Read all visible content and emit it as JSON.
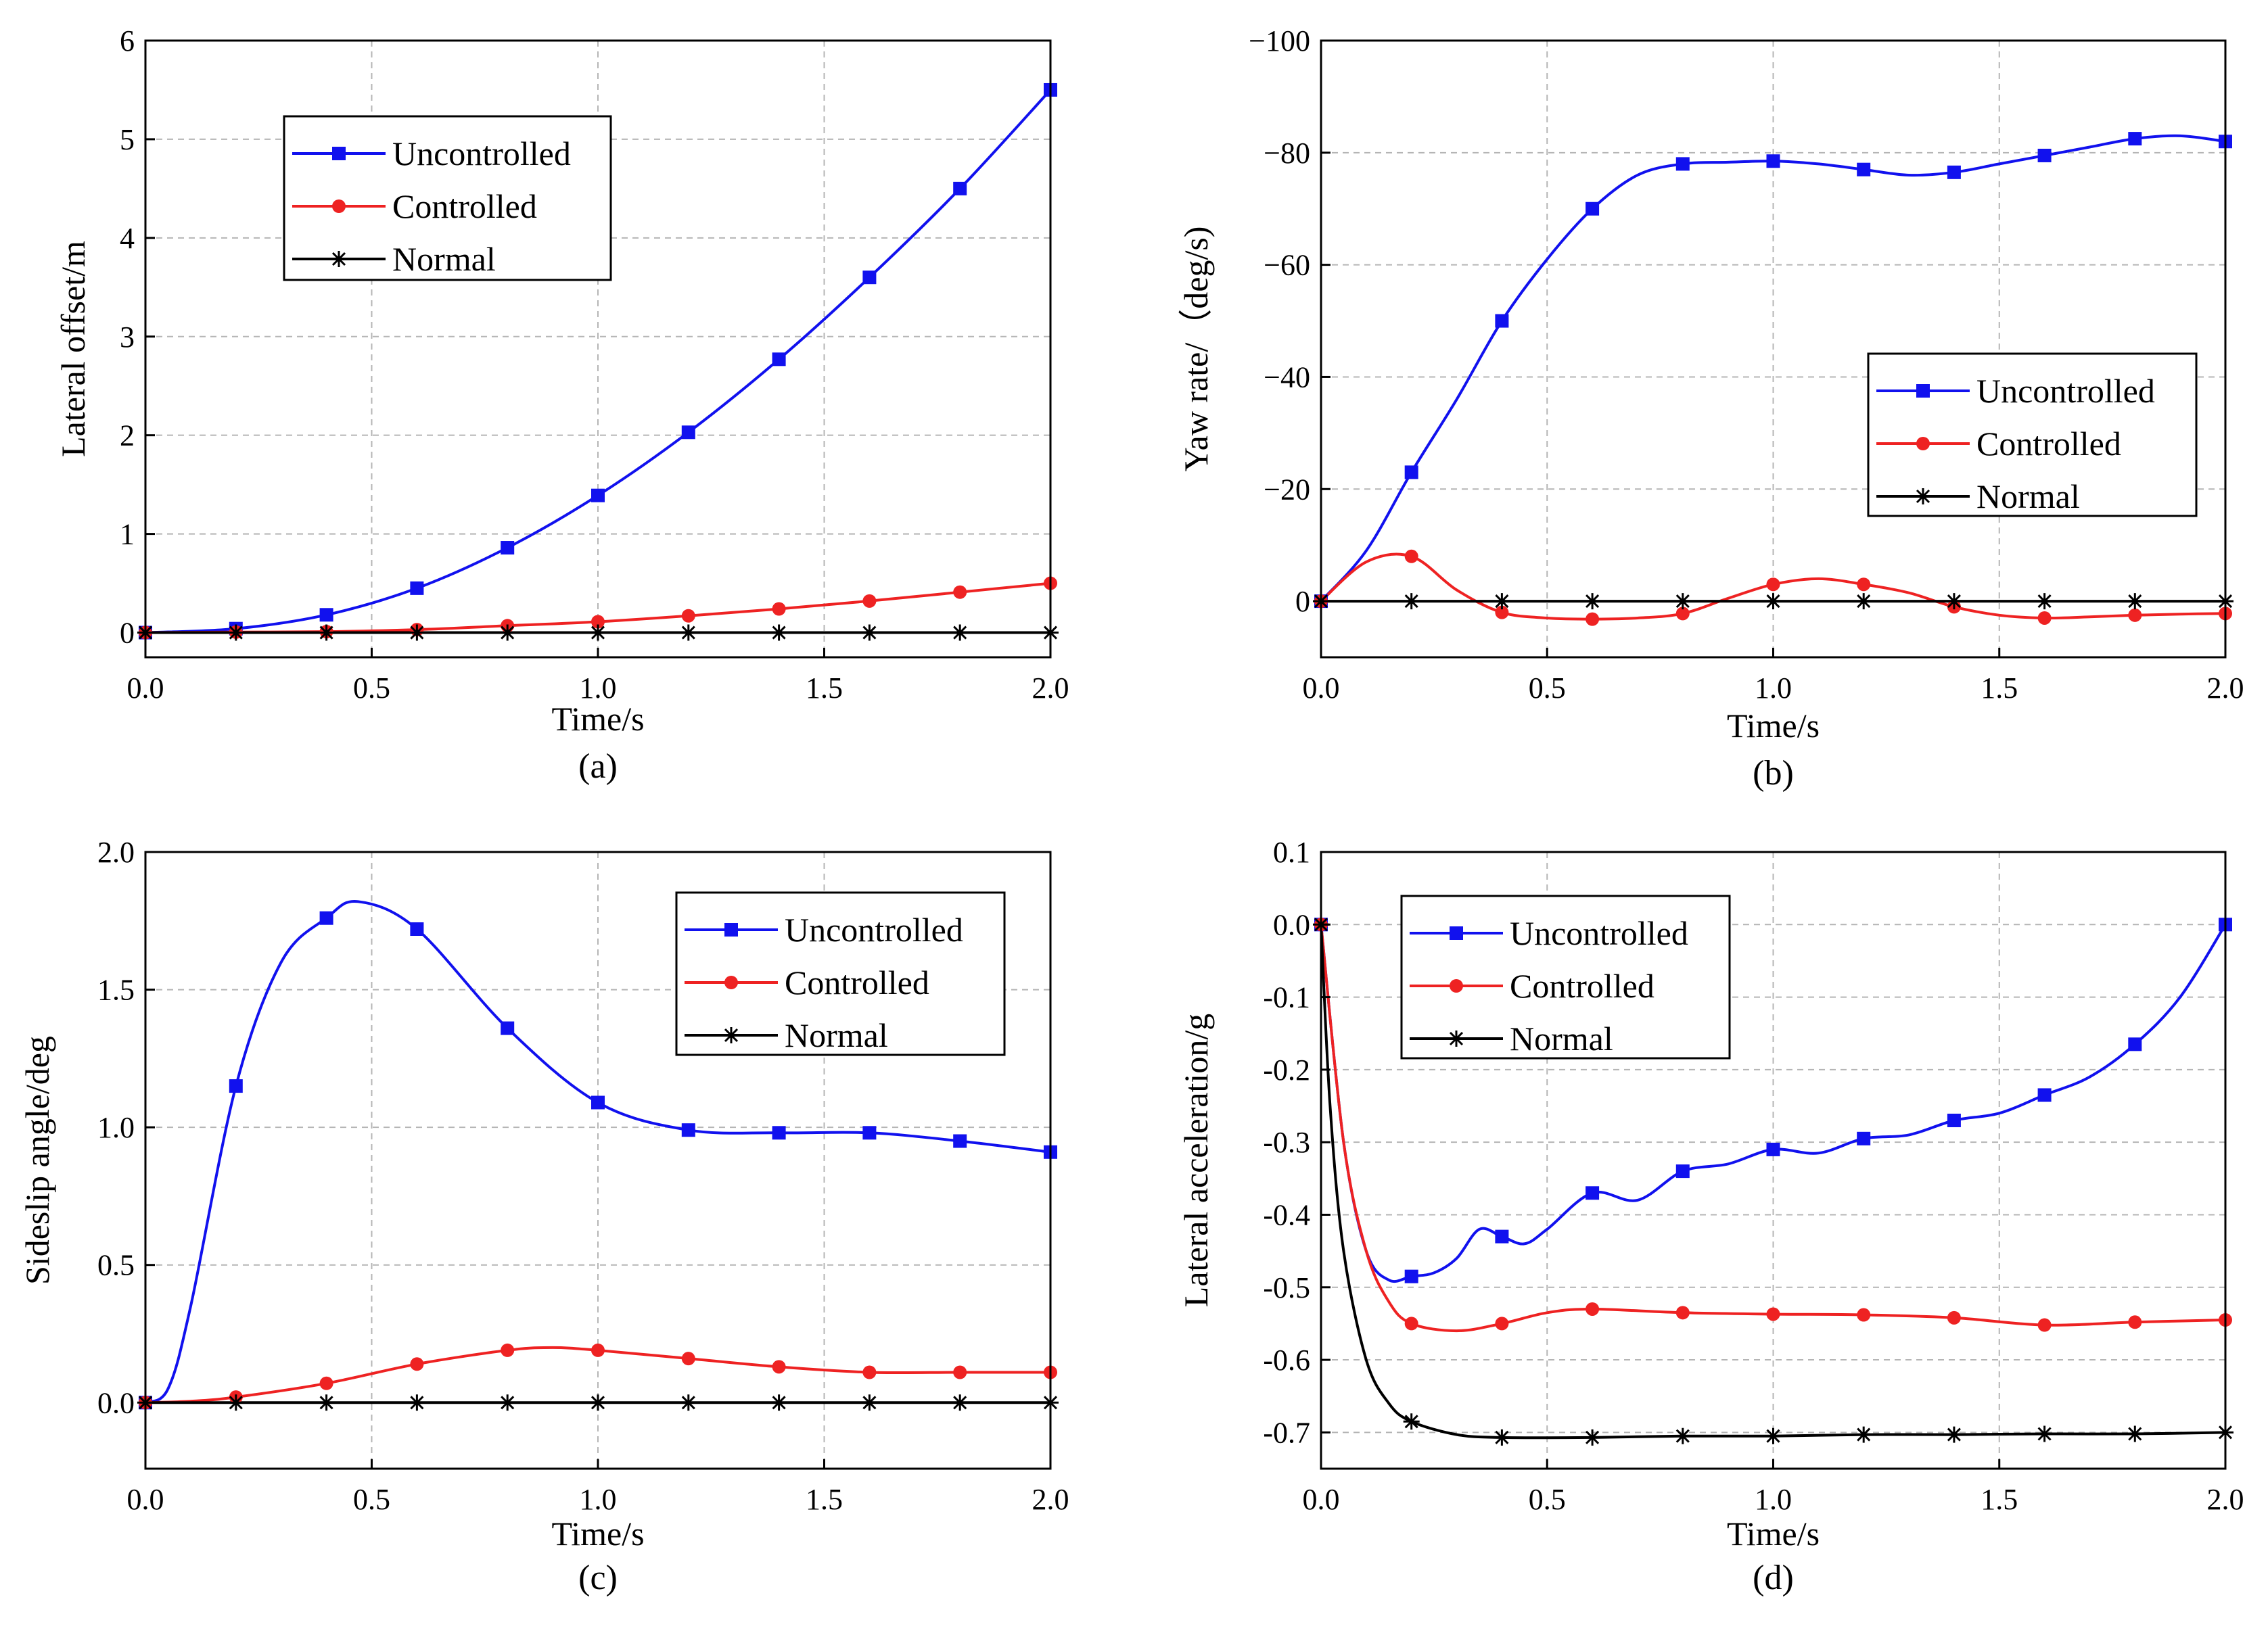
{
  "chart_data": [
    {
      "panel": "(a)",
      "type": "line",
      "xlabel": "Time/s",
      "ylabel": "Lateral offset/m",
      "xlim": [
        0,
        2
      ],
      "ylim": [
        -0.25,
        6
      ],
      "xticks": [
        0,
        0.5,
        1,
        1.5,
        2
      ],
      "xtick_labels": [
        "0.0",
        "0.5",
        "1.0",
        "1.5",
        "2.0"
      ],
      "yticks": [
        0,
        1,
        2,
        3,
        4,
        5,
        6
      ],
      "ytick_labels": [
        "0",
        "1",
        "2",
        "3",
        "4",
        "5",
        "6"
      ],
      "grid": true,
      "legend_position": "top-center",
      "series": [
        {
          "name": "Uncontrolled",
          "color": "#1111ee",
          "marker": "square",
          "x": [
            0,
            0.2,
            0.4,
            0.6,
            0.8,
            1.0,
            1.2,
            1.4,
            1.6,
            1.8,
            2.0
          ],
          "y": [
            0,
            0.04,
            0.18,
            0.45,
            0.86,
            1.39,
            2.03,
            2.77,
            3.6,
            4.5,
            5.5
          ]
        },
        {
          "name": "Controlled",
          "color": "#ee2222",
          "marker": "circle",
          "x": [
            0,
            0.2,
            0.4,
            0.6,
            0.8,
            1.0,
            1.2,
            1.4,
            1.6,
            1.8,
            2.0
          ],
          "y": [
            0,
            0.005,
            0.01,
            0.03,
            0.07,
            0.11,
            0.17,
            0.24,
            0.32,
            0.41,
            0.5
          ]
        },
        {
          "name": "Normal",
          "color": "#000000",
          "marker": "star",
          "x": [
            0,
            0.2,
            0.4,
            0.6,
            0.8,
            1.0,
            1.2,
            1.4,
            1.6,
            1.8,
            2.0
          ],
          "y": [
            0,
            0,
            0,
            0,
            0,
            0,
            0,
            0,
            0,
            0,
            0
          ]
        }
      ]
    },
    {
      "panel": "(b)",
      "type": "line",
      "xlabel": "Time/s",
      "ylabel": "Yaw rate/（deg/s)",
      "xlim": [
        0,
        2
      ],
      "ylim": [
        10,
        -100
      ],
      "y_inverted": true,
      "xticks": [
        0,
        0.5,
        1,
        1.5,
        2
      ],
      "xtick_labels": [
        "0.0",
        "0.5",
        "1.0",
        "1.5",
        "2.0"
      ],
      "yticks": [
        0,
        -20,
        -40,
        -60,
        -80,
        -100
      ],
      "ytick_labels": [
        "0",
        "−20",
        "−40",
        "−60",
        "−80",
        "−100"
      ],
      "grid": true,
      "legend_position": "middle-right",
      "series": [
        {
          "name": "Uncontrolled",
          "color": "#1111ee",
          "marker": "square",
          "x": [
            0,
            0.1,
            0.2,
            0.3,
            0.4,
            0.5,
            0.6,
            0.7,
            0.8,
            0.9,
            1.0,
            1.1,
            1.2,
            1.3,
            1.4,
            1.5,
            1.6,
            1.7,
            1.8,
            1.9,
            2.0
          ],
          "y": [
            0,
            -9,
            -23,
            -36,
            -50,
            -61,
            -70,
            -76,
            -78,
            -78.3,
            -78.5,
            -78,
            -77,
            -76,
            -76.5,
            -78,
            -79.5,
            -81,
            -82.5,
            -83,
            -82
          ],
          "marked_x": [
            0,
            0.2,
            0.4,
            0.6,
            0.8,
            1.0,
            1.2,
            1.4,
            1.6,
            1.8,
            2.0
          ]
        },
        {
          "name": "Controlled",
          "color": "#ee2222",
          "marker": "circle",
          "x": [
            0,
            0.1,
            0.2,
            0.3,
            0.4,
            0.5,
            0.6,
            0.7,
            0.8,
            0.9,
            1.0,
            1.1,
            1.2,
            1.3,
            1.4,
            1.5,
            1.6,
            1.7,
            1.8,
            1.9,
            2.0
          ],
          "y": [
            0,
            -7,
            -8,
            -2,
            2,
            3,
            3.2,
            3,
            2.2,
            -0.5,
            -3,
            -4,
            -3,
            -1.5,
            1,
            2.5,
            3,
            2.8,
            2.5,
            2.3,
            2.2
          ],
          "marked_x": [
            0,
            0.2,
            0.4,
            0.6,
            0.8,
            1.0,
            1.2,
            1.4,
            1.6,
            1.8,
            2.0
          ]
        },
        {
          "name": "Normal",
          "color": "#000000",
          "marker": "star",
          "x": [
            0,
            0.2,
            0.4,
            0.6,
            0.8,
            1.0,
            1.2,
            1.4,
            1.6,
            1.8,
            2.0
          ],
          "y": [
            0,
            0,
            0,
            0,
            0,
            0,
            0,
            0,
            0,
            0,
            0
          ],
          "marked_x": [
            0,
            0.2,
            0.4,
            0.6,
            0.8,
            1.0,
            1.2,
            1.4,
            1.6,
            1.8,
            2.0
          ]
        }
      ]
    },
    {
      "panel": "(c)",
      "type": "line",
      "xlabel": "Time/s",
      "ylabel": "Sideslip angle/deg",
      "xlim": [
        0,
        2
      ],
      "ylim": [
        -0.24,
        2.0
      ],
      "xticks": [
        0,
        0.5,
        1,
        1.5,
        2
      ],
      "xtick_labels": [
        "0.0",
        "0.5",
        "1.0",
        "1.5",
        "2.0"
      ],
      "yticks": [
        0,
        0.5,
        1,
        1.5,
        2
      ],
      "ytick_labels": [
        "0.0",
        "0.5",
        "1.0",
        "1.5",
        "2.0"
      ],
      "grid": true,
      "legend_position": "top-right",
      "series": [
        {
          "name": "Uncontrolled",
          "color": "#1111ee",
          "marker": "square",
          "x": [
            0,
            0.05,
            0.1,
            0.2,
            0.3,
            0.4,
            0.47,
            0.6,
            0.8,
            1.0,
            1.2,
            1.4,
            1.6,
            1.8,
            2.0
          ],
          "y": [
            0,
            0.05,
            0.35,
            1.15,
            1.6,
            1.76,
            1.82,
            1.72,
            1.36,
            1.09,
            0.99,
            0.98,
            0.98,
            0.95,
            0.91
          ],
          "marked_x": [
            0,
            0.2,
            0.4,
            0.6,
            0.8,
            1.0,
            1.2,
            1.4,
            1.6,
            1.8,
            2.0
          ]
        },
        {
          "name": "Controlled",
          "color": "#ee2222",
          "marker": "circle",
          "x": [
            0,
            0.1,
            0.2,
            0.4,
            0.6,
            0.8,
            0.9,
            1.0,
            1.2,
            1.4,
            1.6,
            1.8,
            2.0
          ],
          "y": [
            0,
            0.005,
            0.02,
            0.07,
            0.14,
            0.19,
            0.2,
            0.19,
            0.16,
            0.13,
            0.11,
            0.11,
            0.11
          ],
          "marked_x": [
            0,
            0.2,
            0.4,
            0.6,
            0.8,
            1.0,
            1.2,
            1.4,
            1.6,
            1.8,
            2.0
          ]
        },
        {
          "name": "Normal",
          "color": "#000000",
          "marker": "star",
          "x": [
            0,
            0.2,
            0.4,
            0.6,
            0.8,
            1.0,
            1.2,
            1.4,
            1.6,
            1.8,
            2.0
          ],
          "y": [
            0,
            0,
            0,
            0,
            0,
            0,
            0,
            0,
            0,
            0,
            0
          ],
          "marked_x": [
            0,
            0.2,
            0.4,
            0.6,
            0.8,
            1.0,
            1.2,
            1.4,
            1.6,
            1.8,
            2.0
          ]
        }
      ]
    },
    {
      "panel": "(d)",
      "type": "line",
      "xlabel": "Time/s",
      "ylabel": "Lateral acceleration/g",
      "xlim": [
        0,
        2
      ],
      "ylim": [
        -0.75,
        0.1
      ],
      "xticks": [
        0,
        0.5,
        1,
        1.5,
        2
      ],
      "xtick_labels": [
        "0.0",
        "0.5",
        "1.0",
        "1.5",
        "2.0"
      ],
      "yticks": [
        0.1,
        0,
        -0.1,
        -0.2,
        -0.3,
        -0.4,
        -0.5,
        -0.6,
        -0.7
      ],
      "ytick_labels": [
        "0.1",
        "0.0",
        "-0.1",
        "-0.2",
        "-0.3",
        "-0.4",
        "-0.5",
        "-0.6",
        "-0.7"
      ],
      "grid": true,
      "legend_position": "top-left",
      "series": [
        {
          "name": "Uncontrolled",
          "color": "#1111ee",
          "marker": "square",
          "x": [
            0,
            0.05,
            0.1,
            0.15,
            0.2,
            0.25,
            0.3,
            0.35,
            0.4,
            0.45,
            0.5,
            0.6,
            0.7,
            0.8,
            0.9,
            1.0,
            1.1,
            1.2,
            1.3,
            1.4,
            1.5,
            1.6,
            1.7,
            1.8,
            1.9,
            2.0
          ],
          "y": [
            0,
            -0.3,
            -0.45,
            -0.49,
            -0.485,
            -0.48,
            -0.46,
            -0.42,
            -0.43,
            -0.44,
            -0.42,
            -0.37,
            -0.38,
            -0.34,
            -0.33,
            -0.31,
            -0.315,
            -0.295,
            -0.29,
            -0.27,
            -0.26,
            -0.235,
            -0.21,
            -0.165,
            -0.1,
            0
          ],
          "marked_x": [
            0,
            0.2,
            0.4,
            0.6,
            0.8,
            1.0,
            1.2,
            1.4,
            1.6,
            1.8,
            2.0
          ]
        },
        {
          "name": "Controlled",
          "color": "#ee2222",
          "marker": "circle",
          "x": [
            0,
            0.05,
            0.1,
            0.15,
            0.2,
            0.3,
            0.4,
            0.5,
            0.6,
            0.8,
            1.0,
            1.2,
            1.4,
            1.6,
            1.8,
            2.0
          ],
          "y": [
            0,
            -0.3,
            -0.45,
            -0.52,
            -0.55,
            -0.56,
            -0.55,
            -0.535,
            -0.53,
            -0.535,
            -0.537,
            -0.538,
            -0.542,
            -0.552,
            -0.548,
            -0.545
          ],
          "marked_x": [
            0,
            0.2,
            0.4,
            0.6,
            0.8,
            1.0,
            1.2,
            1.4,
            1.6,
            1.8,
            2.0
          ]
        },
        {
          "name": "Normal",
          "color": "#000000",
          "marker": "star",
          "x": [
            0,
            0.02,
            0.05,
            0.1,
            0.15,
            0.2,
            0.3,
            0.4,
            0.6,
            0.8,
            1.0,
            1.2,
            1.4,
            1.6,
            1.8,
            2.0
          ],
          "y": [
            0,
            -0.25,
            -0.45,
            -0.6,
            -0.66,
            -0.685,
            -0.703,
            -0.707,
            -0.707,
            -0.705,
            -0.705,
            -0.703,
            -0.703,
            -0.702,
            -0.702,
            -0.7
          ],
          "marked_x": [
            0,
            0.2,
            0.4,
            0.6,
            0.8,
            1.0,
            1.2,
            1.4,
            1.6,
            1.8,
            2.0
          ]
        }
      ]
    }
  ]
}
